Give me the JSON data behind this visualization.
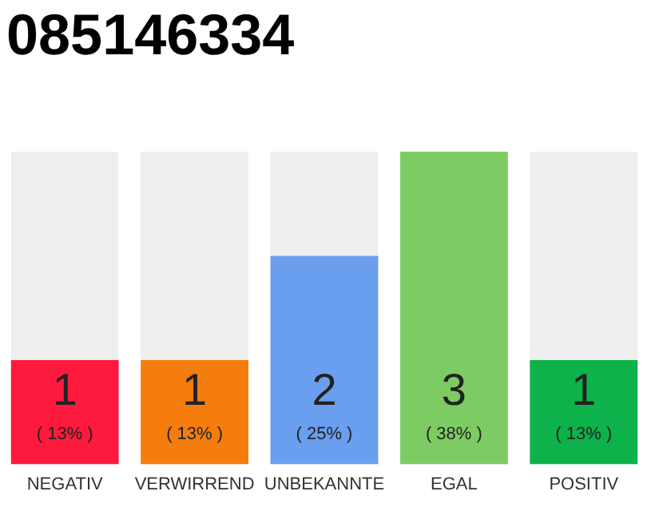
{
  "chart_data": {
    "type": "bar",
    "title": "085146334",
    "categories": [
      "NEGATIV",
      "VERWIRREND",
      "UNBEKANNTE",
      "EGAL",
      "POSITIV"
    ],
    "values": [
      1,
      1,
      2,
      3,
      1
    ],
    "colors": [
      "#fe1a3d",
      "#f47d0e",
      "#6a9eee",
      "#7dcc63",
      "#0db24a"
    ],
    "data_labels": true,
    "annotations": [
      "( 13% )",
      "( 13% )",
      "( 25% )",
      "( 38% )",
      "( 13% )"
    ],
    "grid": false,
    "legend": false
  }
}
